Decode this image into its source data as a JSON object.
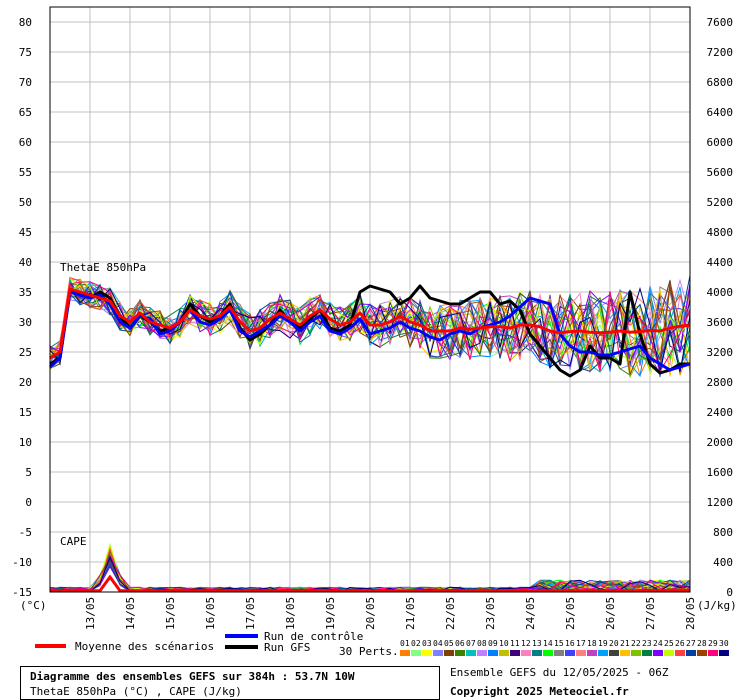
{
  "chart_data": {
    "type": "line",
    "title": "Diagramme des ensembles GEFS sur 384h : 53.7N 10W",
    "subtitle": "ThetaE 850hPa (°C) , CAPE (J/kg)",
    "panel_labels": [
      "ThetaE 850hPa",
      "CAPE"
    ],
    "y_left": {
      "unit": "(°C)",
      "ticks": [
        80,
        75,
        70,
        65,
        60,
        55,
        50,
        45,
        40,
        35,
        30,
        25,
        20,
        15,
        10,
        5,
        0,
        -5,
        -10,
        -15
      ],
      "range": [
        -15,
        80
      ]
    },
    "y_right": {
      "unit": "(J/kg)",
      "ticks": [
        7600,
        7200,
        6800,
        6400,
        6000,
        5600,
        5200,
        4800,
        4400,
        4000,
        3600,
        3200,
        2800,
        2400,
        2000,
        1600,
        1200,
        800,
        400,
        0
      ],
      "range": [
        0,
        7600
      ]
    },
    "x_labels": [
      "13/05",
      "14/05",
      "15/05",
      "16/05",
      "17/05",
      "18/05",
      "19/05",
      "20/05",
      "21/05",
      "22/05",
      "23/05",
      "24/05",
      "25/05",
      "26/05",
      "27/05",
      "28/05"
    ],
    "x_steps": 64,
    "series": [
      {
        "name": "Moyenne des scénarios",
        "color": "#ff0000",
        "values": [
          24,
          25,
          35.5,
          35,
          34.5,
          34,
          33.5,
          31,
          30,
          31.5,
          30,
          29.5,
          29,
          30,
          32,
          31,
          30.5,
          31,
          32.5,
          30,
          28.5,
          29,
          30.5,
          31.5,
          30.5,
          29.5,
          31,
          32,
          30.5,
          29.5,
          30,
          31.5,
          29.5,
          29.5,
          30,
          31,
          30,
          29.5,
          28.5,
          28.5,
          28.5,
          29,
          28.8,
          29,
          29.2,
          29.2,
          29,
          29.5,
          29.5,
          29.2,
          28.5,
          28.2,
          28.4,
          28.5,
          28.3,
          28.2,
          28.3,
          28.5,
          28.3,
          28.4,
          28.6,
          28.5,
          29,
          29.3,
          29.5
        ]
      },
      {
        "name": "Run de contrôle",
        "color": "#0000ff",
        "values": [
          22.5,
          24,
          35,
          34.5,
          34,
          34.5,
          33,
          30,
          29,
          31,
          30.5,
          28,
          28.5,
          30,
          32,
          30,
          29.5,
          30.5,
          32,
          28.5,
          27.5,
          28.5,
          29.5,
          31,
          30,
          28.5,
          30,
          31,
          28.5,
          28,
          29,
          30.5,
          28,
          28.5,
          29,
          30,
          29,
          28.5,
          27.5,
          27,
          28,
          28.5,
          28,
          29,
          29.5,
          30,
          31,
          32.5,
          34,
          33.5,
          33,
          28,
          26,
          25,
          25,
          24.5,
          24.5,
          25,
          25.5,
          26,
          24,
          23,
          22,
          22.5,
          23
        ]
      },
      {
        "name": "Run GFS",
        "color": "#000000",
        "values": [
          23,
          24,
          35,
          35,
          34,
          35,
          34,
          31,
          29,
          31,
          30,
          28.5,
          29,
          30,
          33,
          31,
          30,
          31,
          33,
          29,
          27,
          28,
          29.5,
          32,
          30,
          29,
          30.5,
          32,
          29,
          28.5,
          29.5,
          35,
          36,
          35.5,
          35,
          33,
          34,
          36,
          34,
          33.5,
          33,
          33,
          34,
          35,
          35,
          33,
          33.5,
          32,
          28,
          26,
          24,
          22,
          21,
          22,
          26,
          24,
          24,
          23,
          35,
          28,
          23,
          21.5,
          22,
          23,
          23
        ]
      }
    ],
    "cape_panel": {
      "label": "CAPE",
      "range_jkg": [
        0,
        800
      ]
    },
    "members_label": "30 Perts.",
    "members": [
      "01",
      "02",
      "03",
      "04",
      "05",
      "06",
      "07",
      "08",
      "09",
      "10",
      "11",
      "12",
      "13",
      "14",
      "15",
      "16",
      "17",
      "18",
      "19",
      "20",
      "21",
      "22",
      "23",
      "24",
      "25",
      "26",
      "27",
      "28",
      "29",
      "30"
    ],
    "member_colors": [
      "#ff8000",
      "#80ff80",
      "#ffff00",
      "#8080ff",
      "#804000",
      "#408000",
      "#00c0c0",
      "#c080ff",
      "#0080ff",
      "#c0c000",
      "#400080",
      "#ff80c0",
      "#008080",
      "#00ff00",
      "#808080",
      "#4040ff",
      "#ff8080",
      "#c040c0",
      "#00a0ff",
      "#404040",
      "#ffc000",
      "#80c000",
      "#008040",
      "#8000ff",
      "#c0ff00",
      "#ff4040",
      "#0040a0",
      "#a04000",
      "#ff0080",
      "#000080"
    ]
  },
  "legend": {
    "mean": "Moyenne des scénarios",
    "control": "Run de contrôle",
    "gfs": "Run GFS",
    "mean_color": "#ff0000",
    "control_color": "#0000ff",
    "gfs_color": "#000000"
  },
  "footer": {
    "box_title": "Diagramme des ensembles GEFS sur 384h : 53.7N 10W",
    "box_subtitle": "ThetaE 850hPa (°C) , CAPE (J/kg)",
    "run_info": "Ensemble GEFS du 12/05/2025 - 06Z",
    "copyright": "Copyright 2025 Meteociel.fr"
  }
}
